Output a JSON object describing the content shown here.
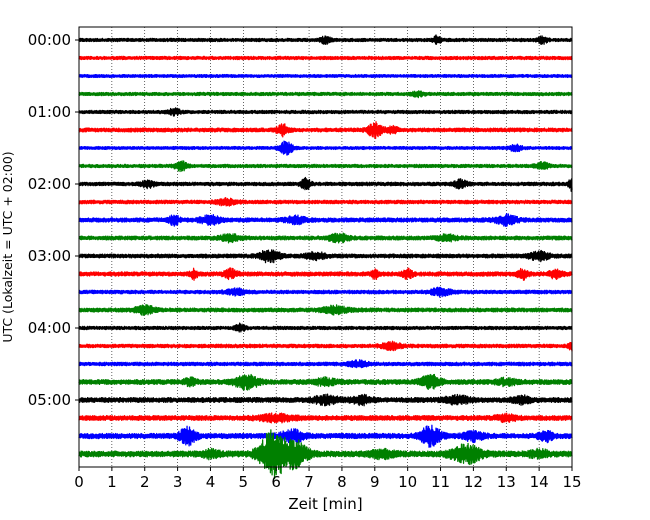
{
  "chart_data": {
    "type": "line",
    "title": "",
    "xlabel": "Zeit  [min]",
    "ylabel": "UTC (Lokalzeit = UTC + 02:00)",
    "xlim": [
      0,
      15
    ],
    "x_ticks": [
      0,
      1,
      2,
      3,
      4,
      5,
      6,
      7,
      8,
      9,
      10,
      11,
      12,
      13,
      14,
      15
    ],
    "x_tick_labels": [
      "0",
      "1",
      "2",
      "3",
      "4",
      "5",
      "6",
      "7",
      "8",
      "9",
      "10",
      "11",
      "12",
      "13",
      "14",
      "15"
    ],
    "y_tick_labels": [
      "00:00",
      "01:00",
      "02:00",
      "03:00",
      "04:00",
      "05:00"
    ],
    "grid_x": true,
    "grid_style": "dotted",
    "color_cycle": [
      "#000000",
      "#ff0000",
      "#0000ff",
      "#008000"
    ],
    "traces": [
      {
        "start": "00:00",
        "color": "#000000",
        "noise": 1.0,
        "events": [
          [
            7.5,
            1.5,
            0.15
          ],
          [
            10.9,
            2.0,
            0.12
          ],
          [
            14.1,
            1.5,
            0.15
          ]
        ]
      },
      {
        "start": "00:15",
        "color": "#ff0000",
        "noise": 1.0,
        "events": []
      },
      {
        "start": "00:30",
        "color": "#0000ff",
        "noise": 0.9,
        "events": []
      },
      {
        "start": "00:45",
        "color": "#008000",
        "noise": 1.0,
        "events": [
          [
            10.3,
            1.0,
            0.2
          ]
        ]
      },
      {
        "start": "01:00",
        "color": "#000000",
        "noise": 1.0,
        "events": [
          [
            2.9,
            1.3,
            0.2
          ]
        ]
      },
      {
        "start": "01:15",
        "color": "#ff0000",
        "noise": 1.2,
        "events": [
          [
            6.2,
            2.5,
            0.18
          ],
          [
            9.0,
            3.5,
            0.2
          ],
          [
            9.5,
            1.5,
            0.2
          ]
        ]
      },
      {
        "start": "01:30",
        "color": "#0000ff",
        "noise": 0.9,
        "events": [
          [
            6.3,
            3.0,
            0.2
          ],
          [
            13.3,
            1.3,
            0.2
          ]
        ]
      },
      {
        "start": "01:45",
        "color": "#008000",
        "noise": 1.0,
        "events": [
          [
            3.1,
            2.2,
            0.18
          ],
          [
            14.1,
            1.5,
            0.2
          ]
        ]
      },
      {
        "start": "02:00",
        "color": "#000000",
        "noise": 1.1,
        "events": [
          [
            2.1,
            1.5,
            0.2
          ],
          [
            6.9,
            2.5,
            0.15
          ],
          [
            11.6,
            1.8,
            0.2
          ],
          [
            15.0,
            3.0,
            0.1
          ]
        ]
      },
      {
        "start": "02:15",
        "color": "#ff0000",
        "noise": 1.1,
        "events": [
          [
            4.5,
            1.5,
            0.3
          ]
        ]
      },
      {
        "start": "02:30",
        "color": "#0000ff",
        "noise": 1.3,
        "events": [
          [
            2.9,
            2.2,
            0.15
          ],
          [
            4.0,
            1.8,
            0.3
          ],
          [
            6.6,
            1.5,
            0.3
          ],
          [
            13.0,
            2.3,
            0.3
          ]
        ]
      },
      {
        "start": "02:45",
        "color": "#008000",
        "noise": 1.2,
        "events": [
          [
            4.6,
            1.5,
            0.3
          ],
          [
            7.9,
            1.8,
            0.3
          ],
          [
            11.2,
            1.4,
            0.3
          ]
        ]
      },
      {
        "start": "03:00",
        "color": "#000000",
        "noise": 1.2,
        "events": [
          [
            5.8,
            2.8,
            0.3
          ],
          [
            7.2,
            1.5,
            0.3
          ],
          [
            14.0,
            2.0,
            0.3
          ]
        ]
      },
      {
        "start": "03:15",
        "color": "#ff0000",
        "noise": 1.3,
        "events": [
          [
            3.5,
            2.2,
            0.1
          ],
          [
            4.6,
            2.0,
            0.2
          ],
          [
            9.0,
            2.2,
            0.1
          ],
          [
            10.0,
            2.0,
            0.15
          ],
          [
            13.5,
            2.2,
            0.15
          ],
          [
            14.5,
            1.8,
            0.2
          ]
        ]
      },
      {
        "start": "03:30",
        "color": "#0000ff",
        "noise": 1.1,
        "events": [
          [
            4.8,
            1.3,
            0.3
          ],
          [
            11.0,
            1.8,
            0.3
          ]
        ]
      },
      {
        "start": "03:45",
        "color": "#008000",
        "noise": 1.2,
        "events": [
          [
            2.0,
            1.8,
            0.3
          ],
          [
            7.8,
            1.6,
            0.4
          ]
        ]
      },
      {
        "start": "04:00",
        "color": "#000000",
        "noise": 1.0,
        "events": [
          [
            4.9,
            1.8,
            0.15
          ]
        ]
      },
      {
        "start": "04:15",
        "color": "#ff0000",
        "noise": 1.1,
        "events": [
          [
            9.5,
            1.6,
            0.3
          ],
          [
            15.0,
            2.0,
            0.1
          ]
        ]
      },
      {
        "start": "04:30",
        "color": "#0000ff",
        "noise": 1.1,
        "events": [
          [
            8.5,
            1.3,
            0.3
          ]
        ]
      },
      {
        "start": "04:45",
        "color": "#008000",
        "noise": 1.5,
        "events": [
          [
            3.4,
            1.5,
            0.2
          ],
          [
            5.1,
            3.0,
            0.35
          ],
          [
            7.5,
            1.5,
            0.3
          ],
          [
            10.7,
            3.0,
            0.3
          ],
          [
            13.0,
            1.3,
            0.3
          ]
        ]
      },
      {
        "start": "05:00",
        "color": "#000000",
        "noise": 1.5,
        "events": [
          [
            7.5,
            1.8,
            0.4
          ],
          [
            8.6,
            1.8,
            0.3
          ],
          [
            11.5,
            1.6,
            0.4
          ],
          [
            13.5,
            1.5,
            0.3
          ]
        ]
      },
      {
        "start": "05:15",
        "color": "#ff0000",
        "noise": 1.5,
        "events": [
          [
            6.0,
            1.5,
            0.5
          ],
          [
            13.0,
            1.3,
            0.3
          ]
        ]
      },
      {
        "start": "05:30",
        "color": "#0000ff",
        "noise": 1.6,
        "events": [
          [
            3.3,
            4.0,
            0.25
          ],
          [
            6.5,
            2.5,
            0.35
          ],
          [
            10.7,
            4.5,
            0.3
          ],
          [
            12.0,
            2.0,
            0.3
          ],
          [
            14.2,
            2.5,
            0.2
          ]
        ]
      },
      {
        "start": "05:45",
        "color": "#008000",
        "noise": 1.8,
        "events": [
          [
            5.9,
            11.0,
            0.4
          ],
          [
            6.6,
            6.0,
            0.35
          ],
          [
            11.8,
            4.0,
            0.45
          ],
          [
            4.0,
            1.5,
            0.3
          ],
          [
            9.2,
            1.5,
            0.4
          ],
          [
            14.0,
            1.5,
            0.3
          ]
        ]
      }
    ]
  }
}
